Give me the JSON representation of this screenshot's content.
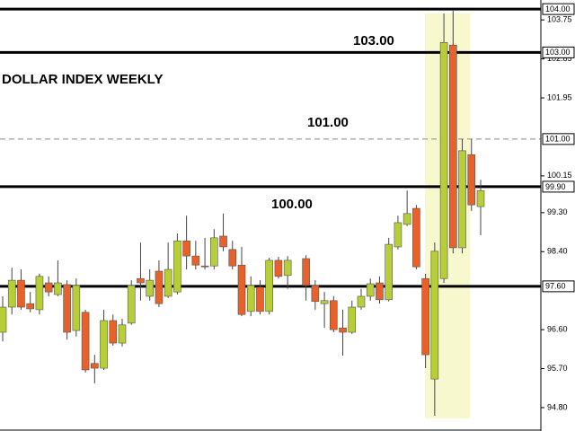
{
  "chart_data": {
    "type": "candlestick",
    "title": "DOLLAR INDEX WEEKLY",
    "annotations": [
      "103.00",
      "101.00",
      "100.00"
    ],
    "categories": [
      null,
      null,
      null,
      null,
      null,
      null,
      null,
      null,
      null,
      null,
      null,
      null,
      null,
      null,
      null,
      null,
      null,
      null,
      null,
      null,
      null,
      null,
      null,
      null,
      null,
      null,
      null,
      null,
      null,
      null,
      null,
      null,
      null,
      null,
      null,
      null,
      null,
      null,
      null,
      null,
      null,
      null,
      null,
      null,
      null,
      null,
      null,
      null,
      null,
      null,
      null,
      null,
      null
    ],
    "series": [
      {
        "up_color": "#b7ce37",
        "down_color": "#e8602a",
        "open": [
          96.54,
          97.12,
          97.74,
          97.2,
          97.06,
          97.68,
          97.41,
          97.64,
          96.58,
          97.0,
          95.82,
          95.71,
          96.81,
          96.29,
          96.75,
          97.78,
          97.37,
          97.95,
          97.37,
          97.47,
          98.65,
          98.3,
          98.07,
          98.07,
          98.76,
          98.45,
          98.09,
          97.02,
          97.58,
          97.02,
          98.2,
          97.85,
          null,
          98.24,
          97.62,
          97.2,
          97.27,
          96.64,
          96.54,
          97.12,
          97.37,
          97.68,
          97.29,
          98.51,
          99.03,
          99.4,
          97.78,
          95.46,
          97.78,
          103.17,
          98.49,
          100.64,
          99.44
        ],
        "high": [
          97.37,
          98.03,
          97.99,
          97.47,
          97.89,
          97.83,
          98.2,
          97.74,
          97.78,
          97.06,
          96.02,
          97.06,
          96.95,
          96.85,
          97.74,
          98.61,
          97.99,
          98.2,
          98.61,
          98.82,
          99.23,
          98.65,
          98.72,
          98.92,
          99.28,
          98.65,
          98.51,
          97.83,
          97.74,
          98.26,
          98.28,
          98.3,
          null,
          98.32,
          97.74,
          97.47,
          97.37,
          97.06,
          97.27,
          97.54,
          97.78,
          97.83,
          98.72,
          99.23,
          99.81,
          99.48,
          97.89,
          98.61,
          103.9,
          103.96,
          101.0,
          101.0,
          100.06
        ],
        "low": [
          96.33,
          96.95,
          97.06,
          97.0,
          96.95,
          97.37,
          97.37,
          96.37,
          96.44,
          95.61,
          95.36,
          95.67,
          96.23,
          96.21,
          96.71,
          97.27,
          97.27,
          97.12,
          97.33,
          97.41,
          97.99,
          97.99,
          97.99,
          97.99,
          98.41,
          97.99,
          96.91,
          96.91,
          96.95,
          96.95,
          97.78,
          97.54,
          null,
          97.27,
          97.06,
          96.64,
          96.54,
          96.0,
          96.5,
          97.06,
          97.27,
          97.2,
          97.25,
          98.45,
          98.99,
          97.99,
          95.71,
          94.61,
          97.68,
          98.36,
          98.36,
          99.34,
          98.78
        ],
        "close": [
          97.12,
          97.74,
          97.12,
          97.08,
          97.83,
          97.47,
          97.68,
          96.54,
          97.62,
          95.67,
          95.71,
          96.81,
          96.29,
          96.71,
          97.62,
          97.68,
          97.74,
          97.2,
          97.99,
          98.65,
          98.3,
          98.09,
          98.05,
          98.72,
          98.51,
          98.07,
          96.95,
          97.62,
          97.02,
          98.2,
          97.83,
          98.2,
          null,
          97.62,
          97.25,
          97.27,
          96.6,
          96.54,
          97.12,
          97.37,
          97.66,
          97.29,
          98.57,
          99.07,
          99.28,
          98.05,
          96.02,
          98.41,
          103.23,
          98.49,
          100.73,
          99.48,
          99.81
        ]
      }
    ],
    "ylim": [
      94.26,
      104.21
    ],
    "yticks": [
      103.75,
      102.85,
      101.95,
      100.15,
      {
        "value": 99.3,
        "label": "99.30"
      },
      {
        "value": 98.4,
        "label": "98.40"
      },
      {
        "value": 96.6,
        "label": "96.60"
      },
      {
        "value": 95.7,
        "label": "95.70"
      },
      {
        "value": 94.8,
        "label": "94.80"
      }
    ],
    "levels": [
      {
        "value": 104,
        "label": "104.00",
        "style": "solid"
      },
      {
        "value": 103,
        "label": "103.00",
        "style": "solid"
      },
      {
        "value": 101,
        "label": "101.00",
        "style": "dashed"
      },
      {
        "value": 99.9,
        "label": "99.90",
        "style": "solid"
      },
      {
        "value": 97.6,
        "label": "97.60",
        "style": "solid"
      }
    ],
    "grid": false
  }
}
